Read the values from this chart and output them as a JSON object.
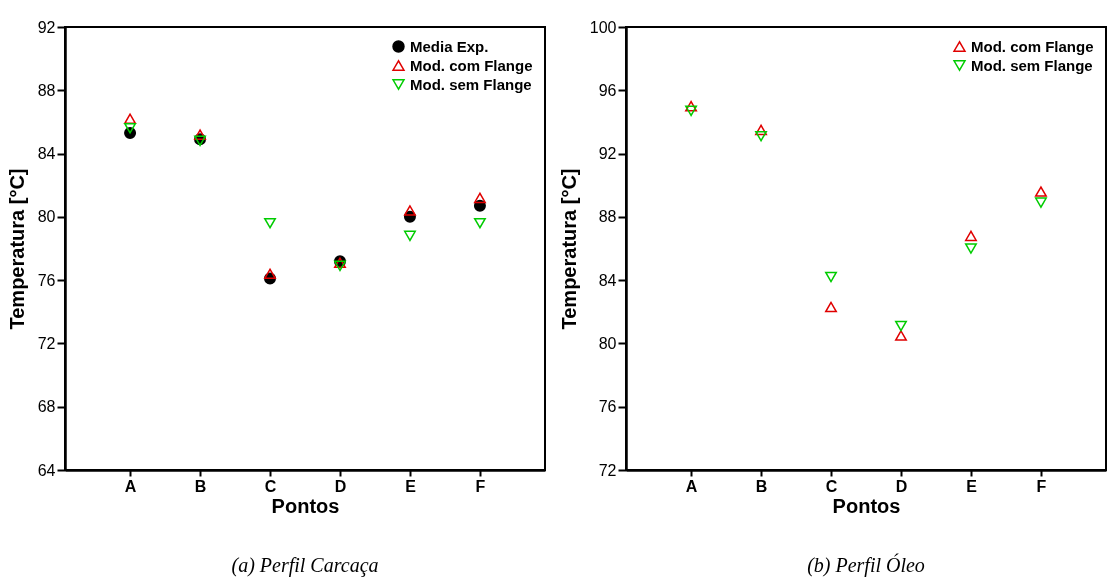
{
  "chart_data": [
    {
      "type": "scatter",
      "categories": [
        "A",
        "B",
        "C",
        "D",
        "E",
        "F"
      ],
      "xlabel": "Pontos",
      "ylabel": "Temperatura [°C]",
      "ylim": [
        64,
        92
      ],
      "yticks": [
        64,
        68,
        72,
        76,
        80,
        84,
        88,
        92
      ],
      "grid": false,
      "legend": "top right",
      "annotations": [
        "(a) Perfil Carcaça"
      ],
      "series": [
        {
          "name": "Media Exp.",
          "color": "#000000",
          "marker": "circle",
          "values": [
            85.3,
            84.9,
            76.1,
            77.2,
            80.0,
            80.7
          ]
        },
        {
          "name": "Mod. com Flange",
          "color": "#e00000",
          "marker": "triangle",
          "values": [
            86.2,
            85.2,
            76.4,
            77.1,
            80.4,
            81.2
          ]
        },
        {
          "name": "Mod. sem Flange",
          "color": "#00cc00",
          "marker": "triangle-down",
          "values": [
            85.6,
            84.8,
            79.6,
            76.9,
            78.8,
            79.6
          ]
        }
      ]
    },
    {
      "type": "scatter",
      "categories": [
        "A",
        "B",
        "C",
        "D",
        "E",
        "F"
      ],
      "xlabel": "Pontos",
      "ylabel": "Temperatura [°C]",
      "ylim": [
        72,
        100
      ],
      "yticks": [
        72,
        76,
        80,
        84,
        88,
        92,
        96,
        100
      ],
      "grid": false,
      "legend": "top right",
      "annotations": [
        "(b) Perfil Óleo"
      ],
      "series": [
        {
          "name": "Mod. com Flange",
          "color": "#e00000",
          "marker": "triangle",
          "values": [
            95.0,
            93.5,
            82.3,
            80.5,
            86.8,
            89.6
          ]
        },
        {
          "name": "Mod. sem Flange",
          "color": "#00cc00",
          "marker": "triangle-down",
          "values": [
            94.7,
            93.1,
            84.2,
            81.1,
            86.0,
            88.9
          ]
        }
      ]
    }
  ]
}
